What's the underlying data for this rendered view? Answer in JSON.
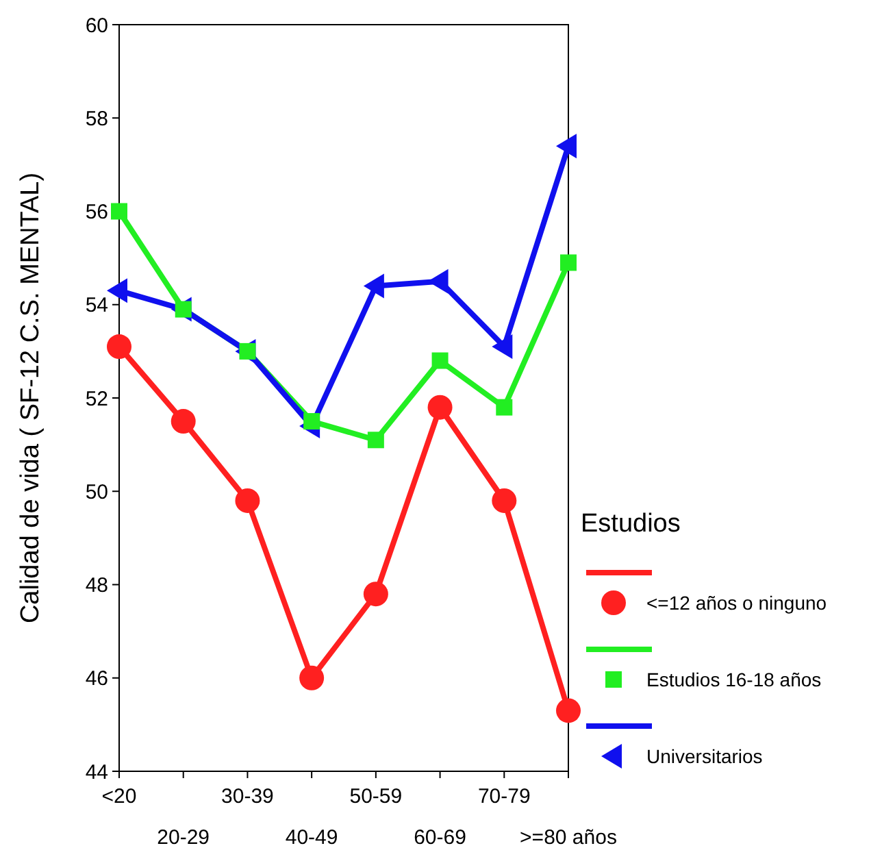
{
  "chart_data": {
    "type": "line",
    "ylabel": "Calidad de vida ( SF-12 C.S. MENTAL)",
    "legend_title": "Estudios",
    "legend": "right",
    "categories": [
      "<20",
      "20-29",
      "30-39",
      "40-49",
      "50-59",
      "60-69",
      "70-79",
      ">=80 años"
    ],
    "ylim": [
      44,
      60
    ],
    "yticks": [
      44,
      46,
      48,
      50,
      52,
      54,
      56,
      58,
      60
    ],
    "series": [
      {
        "name": "<=12 años o ninguno",
        "color": "#ff2020",
        "marker": "circle",
        "values": [
          53.1,
          51.5,
          49.8,
          46.0,
          47.8,
          51.8,
          49.8,
          45.3
        ]
      },
      {
        "name": "Estudios 16-18 años",
        "color": "#22ee22",
        "marker": "square",
        "values": [
          56.0,
          53.9,
          53.0,
          51.5,
          51.1,
          52.8,
          51.8,
          54.9
        ]
      },
      {
        "name": "Universitarios",
        "color": "#1010ee",
        "marker": "triangle",
        "values": [
          54.3,
          53.9,
          53.0,
          51.4,
          54.4,
          54.5,
          53.1,
          57.4
        ]
      }
    ]
  }
}
